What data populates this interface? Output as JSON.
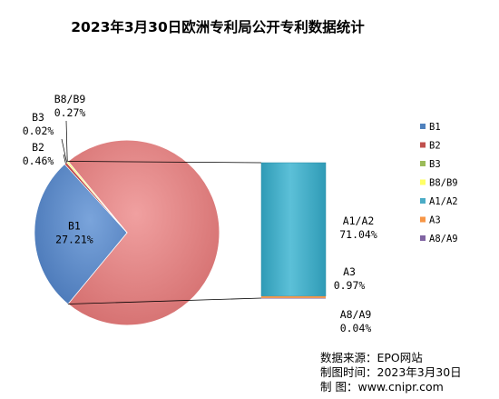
{
  "chart_data": {
    "type": "pie",
    "title": "2023年3月30日欧洲专利局公开专利数据统计",
    "sub_type": "bar-of-pie",
    "slices": [
      {
        "name": "B1",
        "value": 27.21,
        "label": "27.21%",
        "color": "#4f81bd"
      },
      {
        "name": "B2",
        "value": 0.46,
        "label": "0.46%",
        "color": "#c0504d"
      },
      {
        "name": "B3",
        "value": 0.02,
        "label": "0.02%",
        "color": "#9bbb59"
      },
      {
        "name": "B8/B9",
        "value": 0.27,
        "label": "0.27%",
        "color": "#ffff66"
      },
      {
        "name": "A1/A2",
        "value": 71.04,
        "label": "71.04%",
        "color": "#4bacc6"
      },
      {
        "name": "A3",
        "value": 0.97,
        "label": "0.97%",
        "color": "#f79646"
      },
      {
        "name": "A8/A9",
        "value": 0.04,
        "label": "0.04%",
        "color": "#8064a2"
      }
    ],
    "other_slice_color": "#e47c7c",
    "legend": [
      "B1",
      "B2",
      "B3",
      "B8/B9",
      "A1/A2",
      "A3",
      "A8/A9"
    ],
    "legend_position": "right"
  },
  "source": {
    "line1": "数据来源：EPO网站",
    "line2": "制图时间：2023年3月30日",
    "line3": "制    图：www.cnipr.com"
  }
}
